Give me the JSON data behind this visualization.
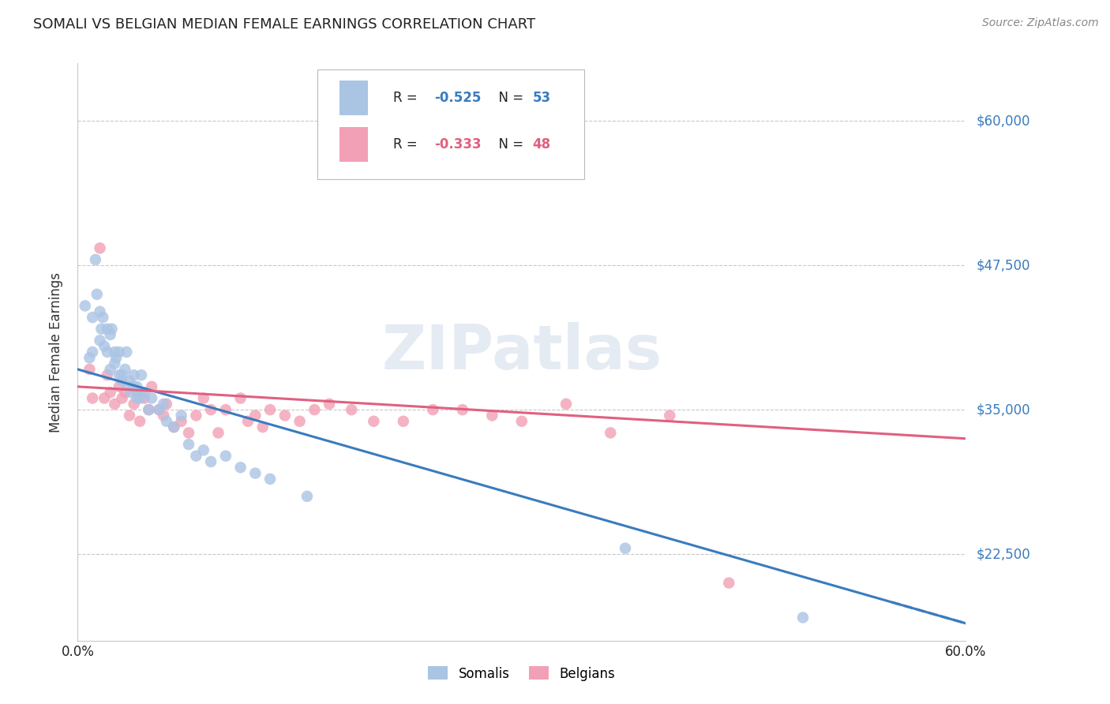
{
  "title": "SOMALI VS BELGIAN MEDIAN FEMALE EARNINGS CORRELATION CHART",
  "source": "Source: ZipAtlas.com",
  "ylabel": "Median Female Earnings",
  "ytick_labels": [
    "$22,500",
    "$35,000",
    "$47,500",
    "$60,000"
  ],
  "ytick_values": [
    22500,
    35000,
    47500,
    60000
  ],
  "ylim": [
    15000,
    65000
  ],
  "xlim": [
    0.0,
    0.6
  ],
  "watermark": "ZIPatlas",
  "somali_color": "#aac4e4",
  "belgian_color": "#f2a0b5",
  "somali_line_color": "#3a7bbf",
  "belgian_line_color": "#e06080",
  "somali_R": -0.525,
  "somali_N": 53,
  "belgian_R": -0.333,
  "belgian_N": 48,
  "background_color": "#ffffff",
  "grid_color": "#c8c8c8",
  "somali_x": [
    0.005,
    0.008,
    0.01,
    0.01,
    0.012,
    0.013,
    0.015,
    0.015,
    0.016,
    0.017,
    0.018,
    0.02,
    0.02,
    0.022,
    0.022,
    0.023,
    0.025,
    0.025,
    0.026,
    0.028,
    0.028,
    0.03,
    0.03,
    0.032,
    0.033,
    0.035,
    0.035,
    0.036,
    0.038,
    0.038,
    0.04,
    0.04,
    0.042,
    0.043,
    0.045,
    0.048,
    0.05,
    0.055,
    0.058,
    0.06,
    0.065,
    0.07,
    0.075,
    0.08,
    0.085,
    0.09,
    0.1,
    0.11,
    0.12,
    0.13,
    0.155,
    0.37,
    0.49
  ],
  "somali_y": [
    44000,
    39500,
    43000,
    40000,
    48000,
    45000,
    43500,
    41000,
    42000,
    43000,
    40500,
    42000,
    40000,
    41500,
    38500,
    42000,
    40000,
    39000,
    39500,
    38000,
    40000,
    38000,
    37500,
    38500,
    40000,
    37000,
    37500,
    36500,
    37000,
    38000,
    36000,
    37000,
    36000,
    38000,
    36500,
    35000,
    36000,
    35000,
    35500,
    34000,
    33500,
    34500,
    32000,
    31000,
    31500,
    30500,
    31000,
    30000,
    29500,
    29000,
    27500,
    23000,
    17000
  ],
  "belgian_x": [
    0.008,
    0.01,
    0.015,
    0.018,
    0.02,
    0.022,
    0.025,
    0.028,
    0.03,
    0.032,
    0.035,
    0.038,
    0.04,
    0.042,
    0.045,
    0.048,
    0.05,
    0.055,
    0.058,
    0.06,
    0.065,
    0.07,
    0.075,
    0.08,
    0.085,
    0.09,
    0.095,
    0.1,
    0.11,
    0.115,
    0.12,
    0.125,
    0.13,
    0.14,
    0.15,
    0.16,
    0.17,
    0.185,
    0.2,
    0.22,
    0.24,
    0.26,
    0.28,
    0.3,
    0.33,
    0.36,
    0.4,
    0.44
  ],
  "belgian_y": [
    38500,
    36000,
    49000,
    36000,
    38000,
    36500,
    35500,
    37000,
    36000,
    36500,
    34500,
    35500,
    36500,
    34000,
    36000,
    35000,
    37000,
    35000,
    34500,
    35500,
    33500,
    34000,
    33000,
    34500,
    36000,
    35000,
    33000,
    35000,
    36000,
    34000,
    34500,
    33500,
    35000,
    34500,
    34000,
    35000,
    35500,
    35000,
    34000,
    34000,
    35000,
    35000,
    34500,
    34000,
    35500,
    33000,
    34500,
    20000
  ]
}
